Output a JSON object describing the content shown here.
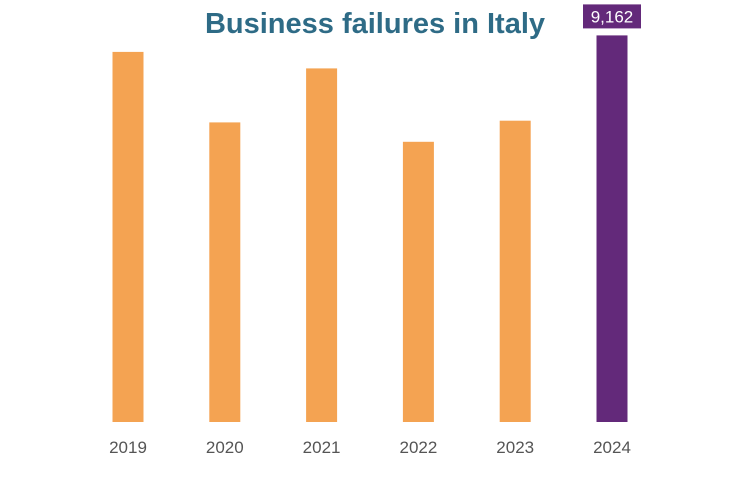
{
  "chart_data": {
    "type": "bar",
    "title": "Business failures in Italy",
    "xlabel": "",
    "ylabel": "",
    "categories": [
      "2019",
      "2020",
      "2021",
      "2022",
      "2023",
      "2024"
    ],
    "values": [
      8770,
      7100,
      8380,
      6640,
      7140,
      9162
    ],
    "ylim": [
      0,
      10000
    ],
    "grid": false,
    "highlight": {
      "index": 5,
      "label": "9,162"
    },
    "colors": {
      "default": "#f4a352",
      "highlight": "#63297a",
      "title": "#2e6b86",
      "ticks": "#555555"
    }
  }
}
